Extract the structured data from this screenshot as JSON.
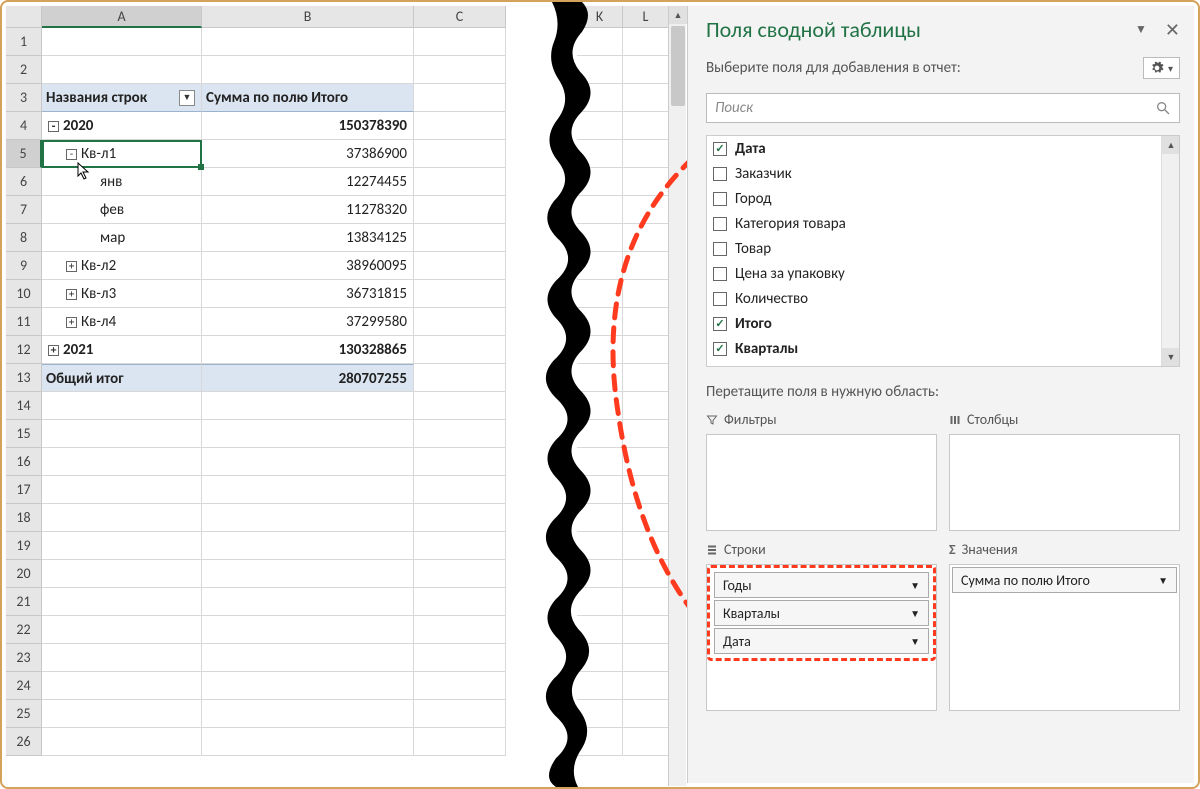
{
  "colors": {
    "accent_green": "#217346",
    "header_fill": "#dbe5f1",
    "annot_red": "#ff3b1f",
    "frame_border": "#d4a25a"
  },
  "columns": [
    "A",
    "B",
    "C"
  ],
  "extra_columns": [
    "K",
    "L"
  ],
  "row_count": 26,
  "active_cell": "A5",
  "pivot": {
    "headerA": "Названия строк",
    "headerB": "Сумма по полю Итого",
    "rows": [
      {
        "r": 4,
        "level": 1,
        "toggle": "-",
        "label": "2020",
        "value": "150378390"
      },
      {
        "r": 5,
        "level": 2,
        "toggle": "-",
        "label": "Кв-л1",
        "value": "37386900",
        "active": true
      },
      {
        "r": 6,
        "level": 3,
        "label": "янв",
        "value": "12274455"
      },
      {
        "r": 7,
        "level": 3,
        "label": "фев",
        "value": "11278320"
      },
      {
        "r": 8,
        "level": 3,
        "label": "мар",
        "value": "13834125"
      },
      {
        "r": 9,
        "level": 2,
        "toggle": "+",
        "label": "Кв-л2",
        "value": "38960095"
      },
      {
        "r": 10,
        "level": 2,
        "toggle": "+",
        "label": "Кв-л3",
        "value": "36731815"
      },
      {
        "r": 11,
        "level": 2,
        "toggle": "+",
        "label": "Кв-л4",
        "value": "37299580"
      },
      {
        "r": 12,
        "level": 1,
        "toggle": "+",
        "label": "2021",
        "value": "130328865"
      }
    ],
    "grand_label": "Общий итог",
    "grand_value": "280707255"
  },
  "pane": {
    "title": "Поля сводной таблицы",
    "subtitle": "Выберите поля для добавления в отчет:",
    "search_placeholder": "Поиск",
    "fields": [
      {
        "label": "Дата",
        "checked": true,
        "bold": true
      },
      {
        "label": "Заказчик",
        "checked": false
      },
      {
        "label": "Город",
        "checked": false
      },
      {
        "label": "Категория товара",
        "checked": false
      },
      {
        "label": "Товар",
        "checked": false
      },
      {
        "label": "Цена за упаковку",
        "checked": false
      },
      {
        "label": "Количество",
        "checked": false
      },
      {
        "label": "Итого",
        "checked": true,
        "bold": true
      },
      {
        "label": "Кварталы",
        "checked": true,
        "bold": true
      }
    ],
    "drag_hint": "Перетащите поля в нужную область:",
    "zone_filters": "Фильтры",
    "zone_columns": "Столбцы",
    "zone_rows": "Строки",
    "zone_values": "Значения",
    "rows_items": [
      "Годы",
      "Кварталы",
      "Дата"
    ],
    "values_items": [
      "Сумма по полю Итого"
    ]
  }
}
